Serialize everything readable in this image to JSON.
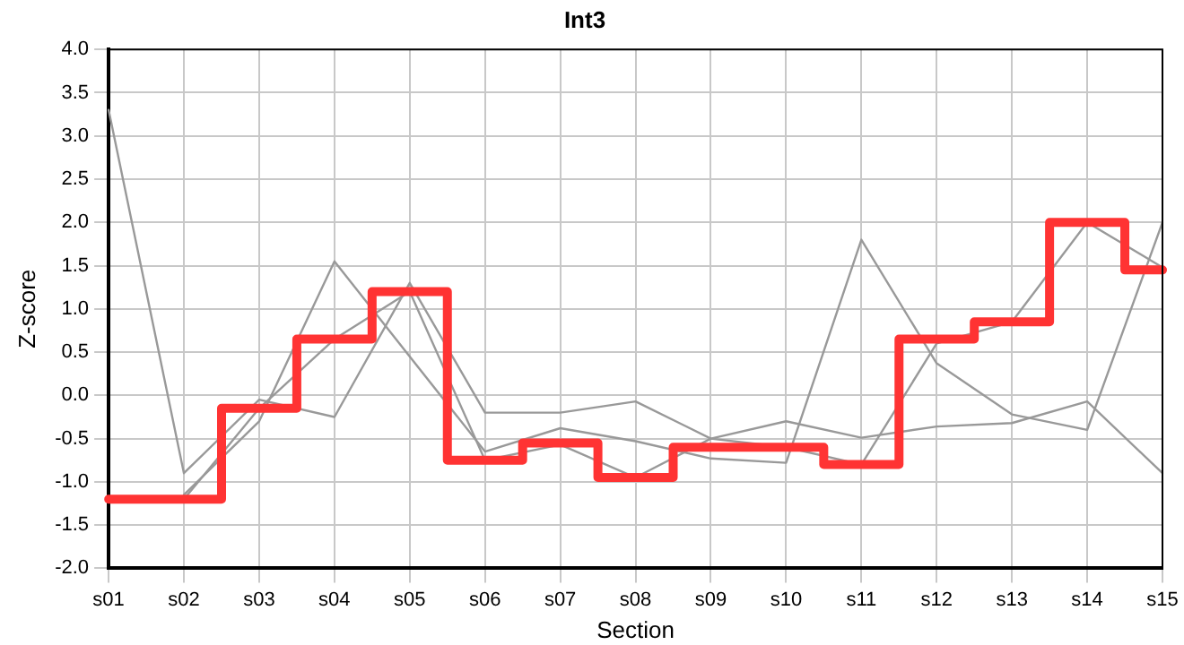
{
  "chart_data": {
    "type": "line",
    "title": "Int3",
    "xlabel": "Section",
    "ylabel": "Z-score",
    "categories": [
      "s01",
      "s02",
      "s03",
      "s04",
      "s05",
      "s06",
      "s07",
      "s08",
      "s09",
      "s10",
      "s11",
      "s12",
      "s13",
      "s14",
      "s15"
    ],
    "series": [
      {
        "type": "line",
        "color": "#999999",
        "values": [
          3.3,
          -0.9,
          -0.05,
          -0.25,
          1.3,
          -0.2,
          -0.2,
          -0.07,
          -0.5,
          -0.3,
          -0.49,
          -0.36,
          -0.32,
          -0.07,
          -0.9
        ]
      },
      {
        "type": "line",
        "color": "#999999",
        "values": [
          null,
          -1.15,
          -0.3,
          1.55,
          0.45,
          -0.65,
          -0.38,
          -0.53,
          -0.73,
          -0.78,
          1.8,
          0.37,
          -0.22,
          -0.4,
          2.0
        ]
      },
      {
        "type": "line",
        "color": "#999999",
        "values": [
          null,
          -1.2,
          -0.15,
          0.65,
          1.2,
          -0.75,
          -0.57,
          -0.95,
          -0.5,
          -0.6,
          -0.8,
          0.6,
          0.85,
          2.0,
          1.48
        ]
      },
      {
        "type": "step",
        "color": "#ff3333",
        "values": [
          -1.2,
          -1.2,
          -0.15,
          0.65,
          1.2,
          -0.75,
          -0.55,
          -0.95,
          -0.6,
          -0.6,
          -0.8,
          0.65,
          0.85,
          2.0,
          1.45
        ]
      }
    ],
    "ylim": [
      -2,
      4
    ],
    "yticks": [
      {
        "value": -2,
        "label": "-2.0"
      },
      -1.5,
      {
        "value": -1,
        "label": "-1.0"
      },
      -0.5,
      {
        "value": 0,
        "label": "0.0"
      },
      0.5,
      {
        "value": 1,
        "label": "1.0"
      },
      1.5,
      {
        "value": 2,
        "label": "2.0"
      },
      2.5,
      {
        "value": 3,
        "label": "3.0"
      },
      3.5,
      {
        "value": 4,
        "label": "4.0"
      }
    ],
    "grid": true,
    "legend": false,
    "marker": "none"
  }
}
